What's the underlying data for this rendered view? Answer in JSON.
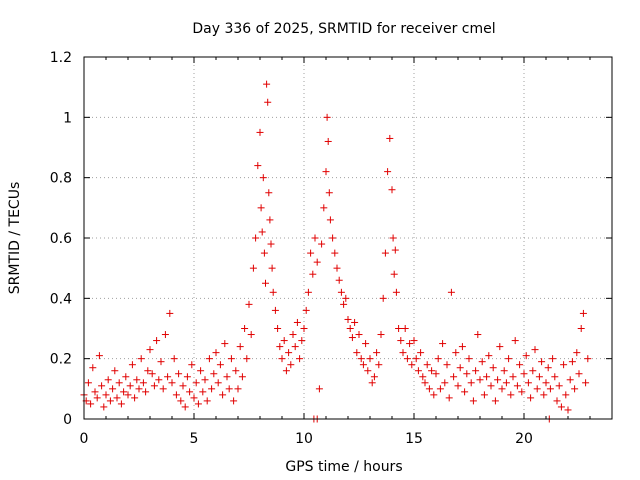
{
  "chart_data": {
    "type": "scatter",
    "title": "Day 336 of 2025, SRMTID for receiver cmel",
    "xlabel": "GPS time / hours",
    "ylabel": "SRMTID / TECUs",
    "xlim": [
      0,
      24
    ],
    "ylim": [
      0,
      1.2
    ],
    "xticks": [
      0,
      5,
      10,
      15,
      20
    ],
    "yticks": [
      0,
      0.2,
      0.4,
      0.6,
      0.8,
      1,
      1.2
    ],
    "xtick_labels": [
      "0",
      "5",
      "10",
      "15",
      "20"
    ],
    "ytick_labels": [
      "0",
      "0.2",
      "0.4",
      "0.6",
      "0.8",
      "1",
      "1.2"
    ],
    "grid": true,
    "marker": "+",
    "series": [
      {
        "name": "SRMTID",
        "color": "#e00000",
        "points": [
          [
            0.0,
            0.08
          ],
          [
            0.1,
            0.06
          ],
          [
            0.2,
            0.12
          ],
          [
            0.3,
            0.05
          ],
          [
            0.4,
            0.17
          ],
          [
            0.5,
            0.09
          ],
          [
            0.6,
            0.07
          ],
          [
            0.7,
            0.21
          ],
          [
            0.8,
            0.11
          ],
          [
            0.9,
            0.04
          ],
          [
            1.0,
            0.08
          ],
          [
            1.1,
            0.13
          ],
          [
            1.2,
            0.06
          ],
          [
            1.3,
            0.1
          ],
          [
            1.4,
            0.16
          ],
          [
            1.5,
            0.07
          ],
          [
            1.6,
            0.12
          ],
          [
            1.7,
            0.05
          ],
          [
            1.8,
            0.09
          ],
          [
            1.9,
            0.14
          ],
          [
            2.0,
            0.08
          ],
          [
            2.1,
            0.11
          ],
          [
            2.2,
            0.18
          ],
          [
            2.3,
            0.07
          ],
          [
            2.4,
            0.13
          ],
          [
            2.5,
            0.1
          ],
          [
            2.6,
            0.2
          ],
          [
            2.7,
            0.12
          ],
          [
            2.8,
            0.09
          ],
          [
            2.9,
            0.16
          ],
          [
            3.0,
            0.23
          ],
          [
            3.1,
            0.15
          ],
          [
            3.2,
            0.11
          ],
          [
            3.3,
            0.26
          ],
          [
            3.4,
            0.13
          ],
          [
            3.5,
            0.19
          ],
          [
            3.6,
            0.1
          ],
          [
            3.7,
            0.28
          ],
          [
            3.8,
            0.14
          ],
          [
            3.9,
            0.35
          ],
          [
            4.0,
            0.12
          ],
          [
            4.1,
            0.2
          ],
          [
            4.2,
            0.08
          ],
          [
            4.3,
            0.15
          ],
          [
            4.4,
            0.06
          ],
          [
            4.5,
            0.11
          ],
          [
            4.6,
            0.04
          ],
          [
            4.7,
            0.14
          ],
          [
            4.8,
            0.09
          ],
          [
            4.9,
            0.18
          ],
          [
            5.0,
            0.07
          ],
          [
            5.1,
            0.12
          ],
          [
            5.2,
            0.05
          ],
          [
            5.3,
            0.16
          ],
          [
            5.4,
            0.09
          ],
          [
            5.5,
            0.13
          ],
          [
            5.6,
            0.06
          ],
          [
            5.7,
            0.2
          ],
          [
            5.8,
            0.1
          ],
          [
            5.9,
            0.15
          ],
          [
            6.0,
            0.22
          ],
          [
            6.1,
            0.12
          ],
          [
            6.2,
            0.18
          ],
          [
            6.3,
            0.08
          ],
          [
            6.4,
            0.25
          ],
          [
            6.5,
            0.14
          ],
          [
            6.6,
            0.1
          ],
          [
            6.7,
            0.2
          ],
          [
            6.8,
            0.06
          ],
          [
            6.9,
            0.16
          ],
          [
            7.0,
            0.1
          ],
          [
            7.1,
            0.24
          ],
          [
            7.2,
            0.14
          ],
          [
            7.3,
            0.3
          ],
          [
            7.4,
            0.2
          ],
          [
            7.5,
            0.38
          ],
          [
            7.6,
            0.28
          ],
          [
            7.7,
            0.5
          ],
          [
            7.8,
            0.6
          ],
          [
            7.9,
            0.84
          ],
          [
            8.0,
            0.95
          ],
          [
            8.05,
            0.7
          ],
          [
            8.1,
            0.62
          ],
          [
            8.15,
            0.8
          ],
          [
            8.2,
            0.55
          ],
          [
            8.25,
            0.45
          ],
          [
            8.3,
            1.11
          ],
          [
            8.35,
            1.05
          ],
          [
            8.4,
            0.75
          ],
          [
            8.45,
            0.66
          ],
          [
            8.5,
            0.58
          ],
          [
            8.55,
            0.5
          ],
          [
            8.6,
            0.42
          ],
          [
            8.7,
            0.36
          ],
          [
            8.8,
            0.3
          ],
          [
            8.9,
            0.24
          ],
          [
            9.0,
            0.2
          ],
          [
            9.1,
            0.26
          ],
          [
            9.2,
            0.16
          ],
          [
            9.3,
            0.22
          ],
          [
            9.4,
            0.18
          ],
          [
            9.5,
            0.28
          ],
          [
            9.6,
            0.24
          ],
          [
            9.7,
            0.32
          ],
          [
            9.8,
            0.2
          ],
          [
            9.9,
            0.26
          ],
          [
            10.0,
            0.3
          ],
          [
            10.1,
            0.36
          ],
          [
            10.2,
            0.42
          ],
          [
            10.3,
            0.55
          ],
          [
            10.4,
            0.48
          ],
          [
            10.5,
            0.6
          ],
          [
            10.6,
            0.52
          ],
          [
            10.7,
            0.1
          ],
          [
            10.8,
            0.58
          ],
          [
            10.9,
            0.7
          ],
          [
            11.0,
            0.82
          ],
          [
            11.05,
            1.0
          ],
          [
            11.1,
            0.92
          ],
          [
            11.15,
            0.75
          ],
          [
            11.2,
            0.66
          ],
          [
            11.3,
            0.6
          ],
          [
            11.4,
            0.55
          ],
          [
            11.5,
            0.5
          ],
          [
            11.6,
            0.46
          ],
          [
            11.7,
            0.42
          ],
          [
            11.8,
            0.38
          ],
          [
            11.9,
            0.4
          ],
          [
            12.0,
            0.33
          ],
          [
            12.1,
            0.3
          ],
          [
            12.2,
            0.27
          ],
          [
            12.3,
            0.32
          ],
          [
            12.4,
            0.22
          ],
          [
            12.5,
            0.28
          ],
          [
            12.6,
            0.2
          ],
          [
            12.7,
            0.18
          ],
          [
            12.8,
            0.25
          ],
          [
            12.9,
            0.16
          ],
          [
            13.0,
            0.2
          ],
          [
            13.1,
            0.12
          ],
          [
            13.2,
            0.14
          ],
          [
            13.3,
            0.22
          ],
          [
            13.4,
            0.18
          ],
          [
            13.5,
            0.28
          ],
          [
            13.6,
            0.4
          ],
          [
            13.7,
            0.55
          ],
          [
            13.8,
            0.82
          ],
          [
            13.9,
            0.93
          ],
          [
            14.0,
            0.76
          ],
          [
            14.05,
            0.6
          ],
          [
            14.1,
            0.48
          ],
          [
            14.15,
            0.56
          ],
          [
            14.2,
            0.42
          ],
          [
            14.3,
            0.3
          ],
          [
            14.4,
            0.26
          ],
          [
            14.5,
            0.22
          ],
          [
            14.6,
            0.3
          ],
          [
            14.7,
            0.2
          ],
          [
            14.8,
            0.25
          ],
          [
            14.9,
            0.18
          ],
          [
            15.0,
            0.26
          ],
          [
            15.1,
            0.2
          ],
          [
            15.2,
            0.16
          ],
          [
            15.3,
            0.22
          ],
          [
            15.4,
            0.14
          ],
          [
            15.5,
            0.12
          ],
          [
            15.6,
            0.18
          ],
          [
            15.7,
            0.1
          ],
          [
            15.8,
            0.16
          ],
          [
            15.9,
            0.08
          ],
          [
            16.0,
            0.15
          ],
          [
            16.1,
            0.2
          ],
          [
            16.2,
            0.1
          ],
          [
            16.3,
            0.25
          ],
          [
            16.4,
            0.12
          ],
          [
            16.5,
            0.18
          ],
          [
            16.6,
            0.07
          ],
          [
            16.7,
            0.42
          ],
          [
            16.8,
            0.14
          ],
          [
            16.9,
            0.22
          ],
          [
            17.0,
            0.11
          ],
          [
            17.1,
            0.17
          ],
          [
            17.2,
            0.24
          ],
          [
            17.3,
            0.09
          ],
          [
            17.4,
            0.15
          ],
          [
            17.5,
            0.2
          ],
          [
            17.6,
            0.12
          ],
          [
            17.7,
            0.06
          ],
          [
            17.8,
            0.16
          ],
          [
            17.9,
            0.28
          ],
          [
            18.0,
            0.13
          ],
          [
            18.1,
            0.19
          ],
          [
            18.2,
            0.08
          ],
          [
            18.3,
            0.14
          ],
          [
            18.4,
            0.21
          ],
          [
            18.5,
            0.11
          ],
          [
            18.6,
            0.17
          ],
          [
            18.7,
            0.06
          ],
          [
            18.8,
            0.13
          ],
          [
            18.9,
            0.24
          ],
          [
            19.0,
            0.1
          ],
          [
            19.1,
            0.16
          ],
          [
            19.2,
            0.12
          ],
          [
            19.3,
            0.2
          ],
          [
            19.4,
            0.08
          ],
          [
            19.5,
            0.14
          ],
          [
            19.6,
            0.26
          ],
          [
            19.7,
            0.11
          ],
          [
            19.8,
            0.18
          ],
          [
            19.9,
            0.09
          ],
          [
            20.0,
            0.15
          ],
          [
            20.1,
            0.21
          ],
          [
            20.2,
            0.12
          ],
          [
            20.3,
            0.07
          ],
          [
            20.4,
            0.16
          ],
          [
            20.5,
            0.23
          ],
          [
            20.6,
            0.1
          ],
          [
            20.7,
            0.14
          ],
          [
            20.8,
            0.19
          ],
          [
            20.9,
            0.08
          ],
          [
            21.0,
            0.12
          ],
          [
            21.1,
            0.17
          ],
          [
            21.2,
            0.1
          ],
          [
            21.3,
            0.2
          ],
          [
            21.4,
            0.14
          ],
          [
            21.5,
            0.06
          ],
          [
            21.6,
            0.11
          ],
          [
            21.7,
            0.04
          ],
          [
            21.8,
            0.18
          ],
          [
            21.9,
            0.08
          ],
          [
            22.0,
            0.03
          ],
          [
            22.1,
            0.13
          ],
          [
            22.2,
            0.19
          ],
          [
            22.3,
            0.1
          ],
          [
            22.4,
            0.22
          ],
          [
            22.5,
            0.15
          ],
          [
            22.6,
            0.3
          ],
          [
            22.7,
            0.35
          ],
          [
            22.8,
            0.12
          ],
          [
            22.9,
            0.2
          ],
          [
            10.45,
            0.0
          ],
          [
            10.6,
            0.0
          ],
          [
            21.15,
            0.0
          ]
        ]
      }
    ]
  }
}
